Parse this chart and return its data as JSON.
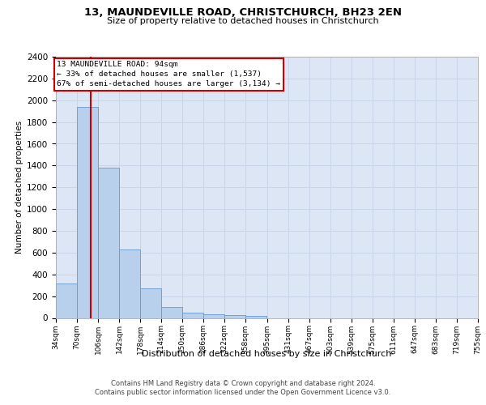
{
  "title": "13, MAUNDEVILLE ROAD, CHRISTCHURCH, BH23 2EN",
  "subtitle": "Size of property relative to detached houses in Christchurch",
  "xlabel": "Distribution of detached houses by size in Christchurch",
  "ylabel": "Number of detached properties",
  "bar_color": "#b8d0ec",
  "bar_edge_color": "#6699cc",
  "grid_color": "#c8d4e8",
  "background_color": "#dce6f5",
  "red_line_color": "#cc0000",
  "annotation_line1": "13 MAUNDEVILLE ROAD: 94sqm",
  "annotation_line2": "← 33% of detached houses are smaller (1,537)",
  "annotation_line3": "67% of semi-detached houses are larger (3,134) →",
  "bin_edges": [
    34,
    70,
    106,
    142,
    178,
    214,
    250,
    286,
    322,
    358,
    395,
    431,
    467,
    503,
    539,
    575,
    611,
    647,
    683,
    719,
    755
  ],
  "bar_values": [
    315,
    1940,
    1380,
    630,
    270,
    100,
    48,
    33,
    27,
    20,
    0,
    0,
    0,
    0,
    0,
    0,
    0,
    0,
    0,
    0
  ],
  "categories": [
    "34sqm",
    "70sqm",
    "106sqm",
    "142sqm",
    "178sqm",
    "214sqm",
    "250sqm",
    "286sqm",
    "322sqm",
    "358sqm",
    "395sqm",
    "431sqm",
    "467sqm",
    "503sqm",
    "539sqm",
    "575sqm",
    "611sqm",
    "647sqm",
    "683sqm",
    "719sqm",
    "755sqm"
  ],
  "red_line_x": 94,
  "ylim": [
    0,
    2400
  ],
  "yticks": [
    0,
    200,
    400,
    600,
    800,
    1000,
    1200,
    1400,
    1600,
    1800,
    2000,
    2200,
    2400
  ],
  "footer_line1": "Contains HM Land Registry data © Crown copyright and database right 2024.",
  "footer_line2": "Contains public sector information licensed under the Open Government Licence v3.0."
}
